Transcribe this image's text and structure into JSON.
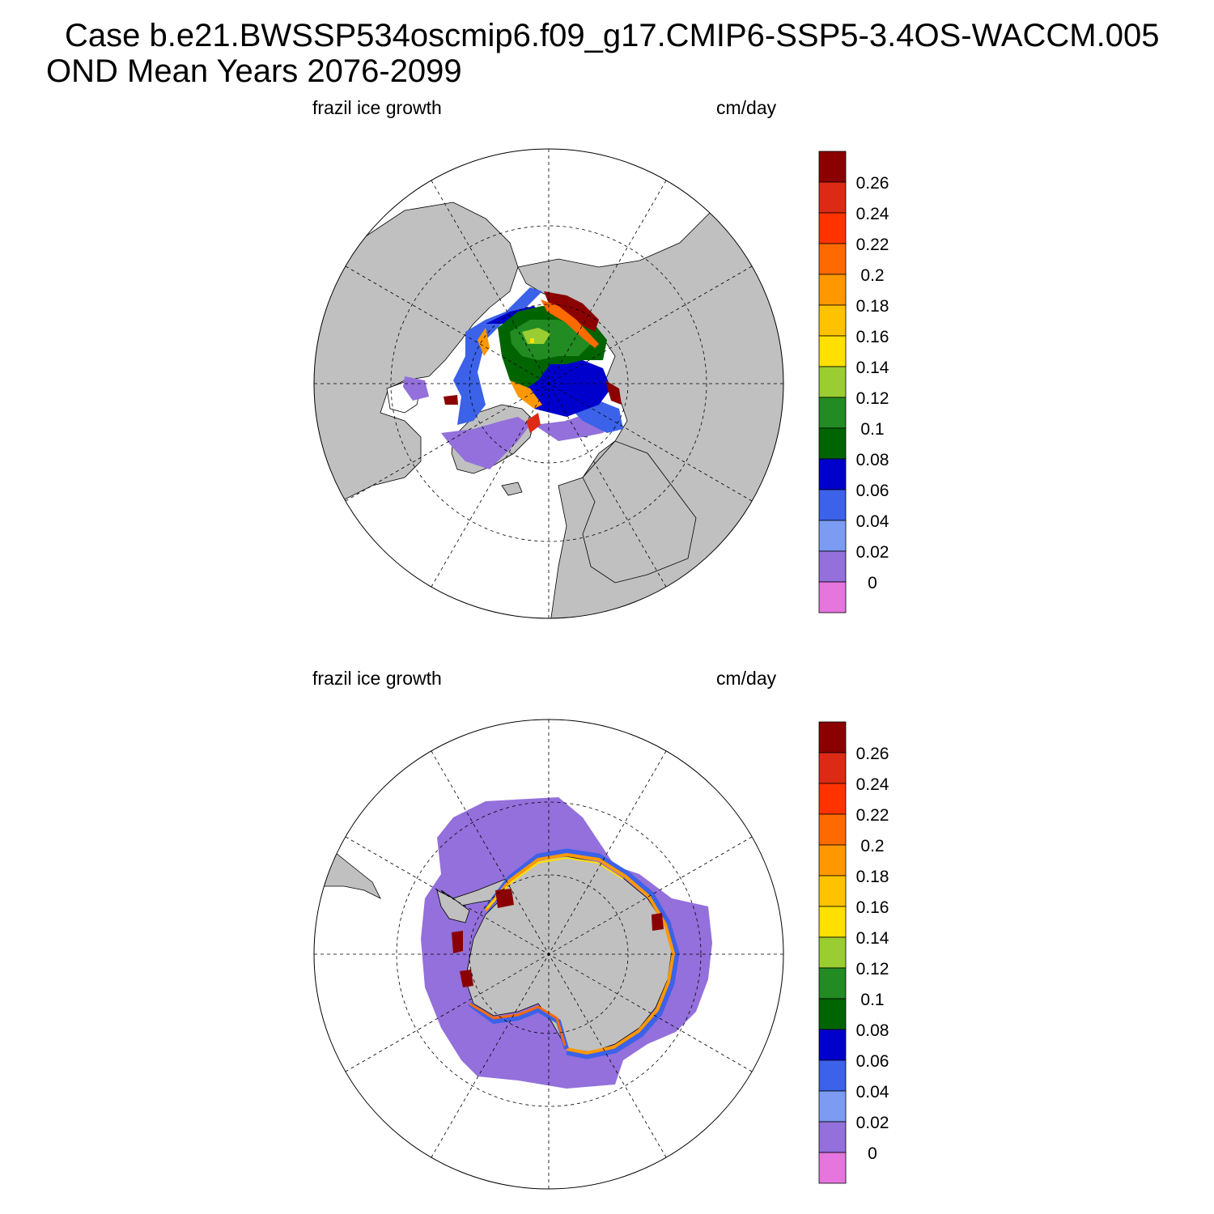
{
  "header": {
    "case_line": "Case b.e21.BWSSP534oscmip6.f09_g17.CMIP6-SSP5-3.4OS-WACCM.005",
    "period_line": "OND Mean   Years 2076-2099"
  },
  "colorbar": {
    "levels": [
      "0",
      "0.02",
      "0.04",
      "0.06",
      "0.08",
      "0.1",
      "0.12",
      "0.14",
      "0.16",
      "0.18",
      "0.2",
      "0.22",
      "0.24",
      "0.26"
    ],
    "colors": [
      "#e675de",
      "#9370db",
      "#7b9cf2",
      "#3b62e8",
      "#0000cd",
      "#006400",
      "#228b22",
      "#9acd32",
      "#ffe000",
      "#ffc200",
      "#ff9800",
      "#ff6a00",
      "#ff3300",
      "#dc2a14",
      "#8b0000"
    ]
  },
  "panels": [
    {
      "id": "north",
      "hemisphere": "Arctic",
      "left_label": "frazil ice growth",
      "right_label": "cm/day",
      "land_color": "#c0c0c0",
      "ocean_color": "#ffffff"
    },
    {
      "id": "south",
      "hemisphere": "Antarctic",
      "left_label": "frazil ice growth",
      "right_label": "cm/day",
      "land_color": "#c0c0c0",
      "ocean_color": "#ffffff"
    }
  ]
}
